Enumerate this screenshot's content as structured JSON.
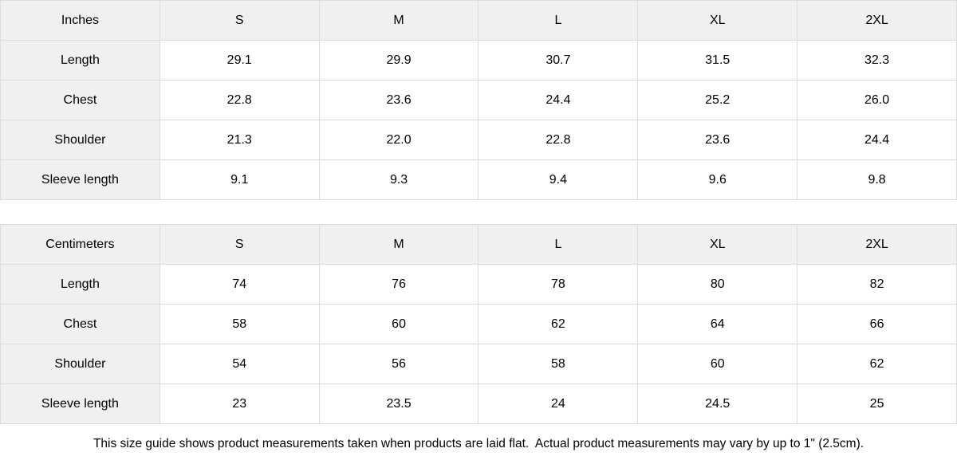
{
  "theme": {
    "background": "#ffffff",
    "header_cell_bg": "#f0f0f0",
    "border_color": "#dcdcdc",
    "text_color": "#000000"
  },
  "tables": [
    {
      "unit_label": "Inches",
      "columns": [
        "S",
        "M",
        "L",
        "XL",
        "2XL"
      ],
      "rows": [
        {
          "label": "Length",
          "values": [
            "29.1",
            "29.9",
            "30.7",
            "31.5",
            "32.3"
          ]
        },
        {
          "label": "Chest",
          "values": [
            "22.8",
            "23.6",
            "24.4",
            "25.2",
            "26.0"
          ]
        },
        {
          "label": "Shoulder",
          "values": [
            "21.3",
            "22.0",
            "22.8",
            "23.6",
            "24.4"
          ]
        },
        {
          "label": "Sleeve length",
          "values": [
            "9.1",
            "9.3",
            "9.4",
            "9.6",
            "9.8"
          ]
        }
      ]
    },
    {
      "unit_label": "Centimeters",
      "columns": [
        "S",
        "M",
        "L",
        "XL",
        "2XL"
      ],
      "rows": [
        {
          "label": "Length",
          "values": [
            "74",
            "76",
            "78",
            "80",
            "82"
          ]
        },
        {
          "label": "Chest",
          "values": [
            "58",
            "60",
            "62",
            "64",
            "66"
          ]
        },
        {
          "label": "Shoulder",
          "values": [
            "54",
            "56",
            "58",
            "60",
            "62"
          ]
        },
        {
          "label": "Sleeve length",
          "values": [
            "23",
            "23.5",
            "24",
            "24.5",
            "25"
          ]
        }
      ]
    }
  ],
  "footer": {
    "note": "This size guide shows product measurements taken when products are laid flat.  Actual product measurements may vary by up to 1\" (2.5cm)."
  }
}
